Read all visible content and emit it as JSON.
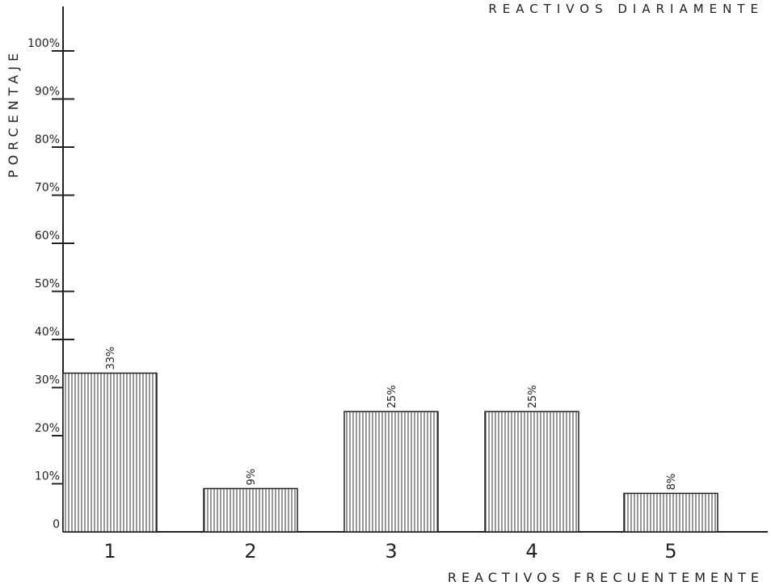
{
  "chart_data": {
    "type": "bar",
    "title": "REACTIVOS DIARIAMENTE",
    "xlabel": "REACTIVOS FRECUENTEMENTE",
    "ylabel": "PORCENTAJE",
    "categories": [
      "1",
      "2",
      "3",
      "4",
      "5"
    ],
    "values": [
      33,
      9,
      25,
      25,
      8
    ],
    "data_labels": [
      "33%",
      "9%",
      "25%",
      "25%",
      "8%"
    ],
    "ylim": [
      0,
      100
    ],
    "yticks": [
      {
        "value": 0,
        "label": "0"
      },
      {
        "value": 10,
        "label": "10%"
      },
      {
        "value": 20,
        "label": "20%"
      },
      {
        "value": 30,
        "label": "30%"
      },
      {
        "value": 40,
        "label": "40%"
      },
      {
        "value": 50,
        "label": "50%"
      },
      {
        "value": 60,
        "label": "60%"
      },
      {
        "value": 70,
        "label": "70%"
      },
      {
        "value": 80,
        "label": "80%"
      },
      {
        "value": 90,
        "label": "90%"
      },
      {
        "value": 100,
        "label": "100%"
      }
    ],
    "grid": false,
    "bar_fill": "vertical-hatch",
    "colors": {
      "ink": "#222222",
      "background": "#ffffff"
    }
  }
}
